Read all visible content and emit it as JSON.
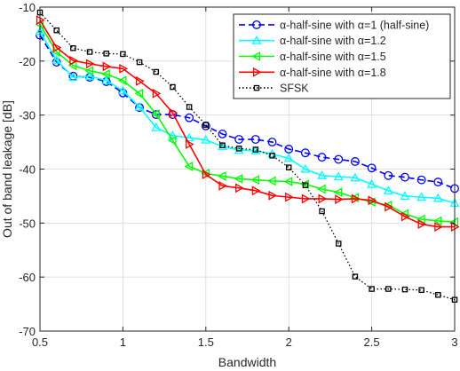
{
  "chart_data": {
    "type": "line",
    "title": "",
    "xlabel": "Bandwidth",
    "ylabel": "Out of band leakage [dB]",
    "xlim": [
      0.5,
      3
    ],
    "ylim": [
      -70,
      -10
    ],
    "xticks": [
      0.5,
      1,
      1.5,
      2,
      2.5,
      3
    ],
    "xtick_labels": [
      "0.5",
      "1",
      "1.5",
      "2",
      "2.5",
      "3"
    ],
    "yticks": [
      -70,
      -60,
      -50,
      -40,
      -30,
      -20,
      -10
    ],
    "ytick_labels": [
      "-70",
      "-60",
      "-50",
      "-40",
      "-30",
      "-20",
      "-10"
    ],
    "grid": true,
    "legend_position": "top-right",
    "x": [
      0.5,
      0.6,
      0.7,
      0.8,
      0.9,
      1.0,
      1.1,
      1.2,
      1.3,
      1.4,
      1.5,
      1.6,
      1.7,
      1.8,
      1.9,
      2.0,
      2.1,
      2.2,
      2.3,
      2.4,
      2.5,
      2.6,
      2.7,
      2.8,
      2.9,
      3.0
    ],
    "series": [
      {
        "name": "α-half-sine with α=1 (half-sine)",
        "color": "#0000ff",
        "line_style": "dashed",
        "marker": "circle",
        "values": [
          -15.2,
          -20.2,
          -22.8,
          -23.0,
          -23.8,
          -25.9,
          -28.6,
          -29.9,
          -29.9,
          -30.5,
          -32.0,
          -33.5,
          -34.5,
          -34.5,
          -35.0,
          -36.3,
          -37.0,
          -37.8,
          -38.2,
          -38.6,
          -39.8,
          -41.2,
          -41.5,
          -42.0,
          -42.4,
          -43.6
        ]
      },
      {
        "name": "α-half-sine with α=1.2",
        "color": "#00ffff",
        "line_style": "solid",
        "marker": "triangle-up",
        "values": [
          -14.5,
          -19.8,
          -23.0,
          -22.8,
          -23.6,
          -25.5,
          -28.5,
          -32.3,
          -33.8,
          -34.2,
          -34.6,
          -35.8,
          -36.5,
          -36.6,
          -37.2,
          -38.0,
          -40.0,
          -41.2,
          -41.4,
          -41.6,
          -42.8,
          -44.0,
          -45.0,
          -45.2,
          -45.4,
          -46.3
        ]
      },
      {
        "name": "α-half-sine with α=1.5",
        "color": "#00ff00",
        "line_style": "solid",
        "marker": "triangle-left",
        "values": [
          -13.2,
          -18.3,
          -20.8,
          -21.8,
          -22.4,
          -23.6,
          -26.0,
          -29.8,
          -34.7,
          -39.5,
          -40.8,
          -41.3,
          -41.8,
          -42.0,
          -42.2,
          -42.3,
          -42.8,
          -43.7,
          -44.3,
          -45.3,
          -46.1,
          -46.7,
          -48.3,
          -49.3,
          -49.6,
          -49.8
        ]
      },
      {
        "name": "α-half-sine with α=1.8",
        "color": "#ff0000",
        "line_style": "solid",
        "marker": "triangle-right",
        "values": [
          -12.4,
          -17.5,
          -19.9,
          -20.5,
          -21.0,
          -21.4,
          -23.7,
          -26.0,
          -29.6,
          -35.4,
          -41.0,
          -43.1,
          -43.5,
          -44.0,
          -44.9,
          -45.2,
          -45.5,
          -45.5,
          -45.6,
          -45.5,
          -45.8,
          -47.0,
          -48.8,
          -50.2,
          -50.7,
          -50.7
        ]
      },
      {
        "name": "SFSK",
        "color": "#000000",
        "line_style": "dotted",
        "marker": "square",
        "values": [
          -11.0,
          -14.3,
          -17.6,
          -18.3,
          -18.6,
          -18.7,
          -20.2,
          -22.0,
          -24.8,
          -28.5,
          -31.8,
          -35.6,
          -36.2,
          -36.4,
          -37.5,
          -39.7,
          -43.0,
          -47.8,
          -53.8,
          -59.9,
          -62.2,
          -62.2,
          -62.3,
          -62.4,
          -63.3,
          -64.2
        ]
      }
    ]
  }
}
